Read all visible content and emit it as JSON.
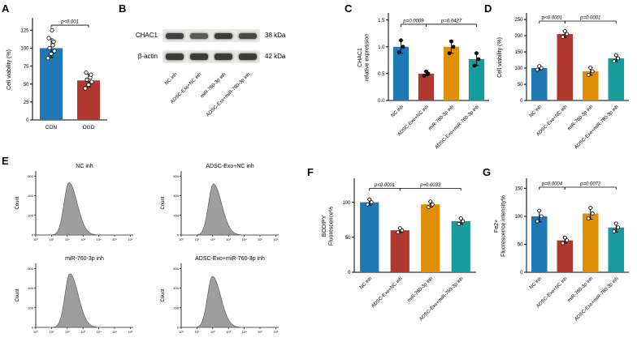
{
  "panel_labels": {
    "A": "A",
    "B": "B",
    "C": "C",
    "D": "D",
    "E": "E",
    "F": "F",
    "G": "G"
  },
  "colors": {
    "blue": "#1f77b4",
    "red": "#b0382f",
    "orange": "#de8f05",
    "teal": "#169c9c",
    "band": "#333333"
  },
  "panel_b": {
    "proteins": [
      {
        "name": "CHAC1",
        "kda": "38 kDa"
      },
      {
        "name": "β-actin",
        "kda": "42 kDa"
      }
    ],
    "lanes": [
      "NC inh",
      "ADSC-Exo+NC inh",
      "miR-760-3p inh",
      "ADSC-Exo+miR-760-3p inh"
    ]
  },
  "chart_data": [
    {
      "id": "A",
      "type": "bar",
      "categories": [
        "CON",
        "OGD"
      ],
      "values": [
        100,
        55
      ],
      "errors": [
        13,
        9
      ],
      "points": [
        [
          86,
          92,
          96,
          100,
          104,
          109,
          114,
          125
        ],
        [
          44,
          49,
          53,
          56,
          59,
          63,
          66
        ]
      ],
      "colors": [
        "#1f77b4",
        "#b0382f"
      ],
      "ylabel": [
        "Cell viability (%)"
      ],
      "ylim": [
        0,
        140
      ],
      "yticks": [
        "0",
        "25",
        "50",
        "75",
        "100",
        "125"
      ],
      "significance": [
        {
          "from": 0,
          "to": 1,
          "y": 132,
          "label": "p<0.001"
        }
      ]
    },
    {
      "id": "C",
      "type": "bar",
      "categories": [
        "NC inh",
        "ADSC-Exo+NC inh",
        "miR-760-3p inh",
        "ADSC-Exo+miR-760-3p inh"
      ],
      "values": [
        1.0,
        0.5,
        1.0,
        0.77
      ],
      "errors": [
        0.12,
        0.04,
        0.12,
        0.12
      ],
      "points": [
        [
          0.9,
          1.0,
          1.12
        ],
        [
          0.46,
          0.5,
          0.54
        ],
        [
          0.88,
          1.0,
          1.1
        ],
        [
          0.65,
          0.77,
          0.88
        ]
      ],
      "colors": [
        "#1f77b4",
        "#b0382f",
        "#de8f05",
        "#169c9c"
      ],
      "ylabel": [
        "CHAC1",
        "relative expression"
      ],
      "ylim": [
        0,
        1.6
      ],
      "yticks": [
        "0.0",
        "0.5",
        "1.0",
        "1.5"
      ],
      "significance": [
        {
          "from": 0,
          "to": 1,
          "y": 1.42,
          "label": "p=0.0009"
        },
        {
          "from": 1,
          "to": 3,
          "y": 1.42,
          "label": "p=0.0427"
        }
      ]
    },
    {
      "id": "D",
      "type": "bar",
      "categories": [
        "NC inh",
        "ADSC-Exo+NC inh",
        "miR-760-3p inh",
        "ADSC-Exo+miR-760-3p inh"
      ],
      "values": [
        100,
        205,
        90,
        130
      ],
      "errors": [
        6,
        10,
        12,
        10
      ],
      "points": [
        [
          95,
          100,
          106
        ],
        [
          196,
          205,
          214
        ],
        [
          79,
          90,
          101
        ],
        [
          121,
          130,
          140
        ]
      ],
      "colors": [
        "#1f77b4",
        "#b0382f",
        "#de8f05",
        "#169c9c"
      ],
      "ylabel": [
        "Cell viability (%)"
      ],
      "ylim": [
        0,
        265
      ],
      "yticks": [
        "0",
        "50",
        "100",
        "150",
        "200",
        "250"
      ],
      "significance": [
        {
          "from": 0,
          "to": 1,
          "y": 245,
          "label": "p<0.0001"
        },
        {
          "from": 1,
          "to": 3,
          "y": 245,
          "label": "p=0.0001"
        }
      ]
    },
    {
      "id": "E",
      "type": "histogram",
      "ylabel": "Count",
      "yticks": [
        "0",
        "200",
        "400",
        "600"
      ],
      "xticks": [
        "10⁰",
        "10¹",
        "10²",
        "10³",
        "10⁴",
        "10⁵",
        "10⁶"
      ],
      "plots": [
        {
          "title": "NC inh",
          "peak_center": 0.34,
          "peak_height": 0.82
        },
        {
          "title": "ADSC-Exo+NC inh",
          "peak_center": 0.33,
          "peak_height": 0.8
        },
        {
          "title": "miR-760-3p inh",
          "peak_center": 0.35,
          "peak_height": 0.84
        },
        {
          "title": "ADSC-Exo+miR-760-3p inh",
          "peak_center": 0.32,
          "peak_height": 0.8
        }
      ]
    },
    {
      "id": "F",
      "type": "bar",
      "categories": [
        "NC inh",
        "ADSC-Exo+NC inh",
        "miR-760-3p inh",
        "ADSC-Exo+miR-760-3p inh"
      ],
      "values": [
        100,
        60,
        97,
        73
      ],
      "errors": [
        4,
        3,
        4,
        4
      ],
      "points": [
        [
          97,
          100,
          104
        ],
        [
          57,
          60,
          63
        ],
        [
          93,
          97,
          101
        ],
        [
          69,
          73,
          77
        ]
      ],
      "colors": [
        "#1f77b4",
        "#b0382f",
        "#de8f05",
        "#169c9c"
      ],
      "ylabel": [
        "BODIPY",
        "Fluorescence%"
      ],
      "ylim": [
        0,
        132
      ],
      "yticks": [
        "0",
        "50",
        "100"
      ],
      "significance": [
        {
          "from": 0,
          "to": 1,
          "y": 120,
          "label": "p<0.0001"
        },
        {
          "from": 1,
          "to": 3,
          "y": 120,
          "label": "p=0.0033"
        }
      ]
    },
    {
      "id": "G",
      "type": "bar",
      "categories": [
        "NC inh",
        "ADSC-Exo+NC inh",
        "miR-760-3p inh",
        "ADSC-Exo+miR-760-3p inh"
      ],
      "values": [
        100,
        57,
        105,
        80
      ],
      "errors": [
        10,
        5,
        10,
        8
      ],
      "points": [
        [
          91,
          100,
          110
        ],
        [
          52,
          57,
          62
        ],
        [
          96,
          105,
          115
        ],
        [
          73,
          80,
          87
        ]
      ],
      "colors": [
        "#1f77b4",
        "#b0382f",
        "#de8f05",
        "#169c9c"
      ],
      "ylabel": [
        "Fe2+",
        "Fluorescence intensity%"
      ],
      "ylim": [
        0,
        165
      ],
      "yticks": [
        "0",
        "50",
        "100",
        "150"
      ],
      "significance": [
        {
          "from": 0,
          "to": 1,
          "y": 152,
          "label": "p=0.0004"
        },
        {
          "from": 1,
          "to": 3,
          "y": 152,
          "label": "p=0.0072"
        }
      ]
    }
  ]
}
